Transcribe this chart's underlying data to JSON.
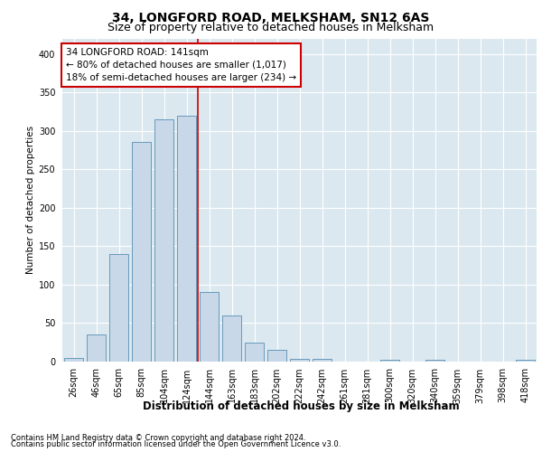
{
  "title1": "34, LONGFORD ROAD, MELKSHAM, SN12 6AS",
  "title2": "Size of property relative to detached houses in Melksham",
  "xlabel": "Distribution of detached houses by size in Melksham",
  "ylabel": "Number of detached properties",
  "footer1": "Contains HM Land Registry data © Crown copyright and database right 2024.",
  "footer2": "Contains public sector information licensed under the Open Government Licence v3.0.",
  "bin_labels": [
    "26sqm",
    "46sqm",
    "65sqm",
    "85sqm",
    "104sqm",
    "124sqm",
    "144sqm",
    "163sqm",
    "183sqm",
    "202sqm",
    "222sqm",
    "242sqm",
    "261sqm",
    "281sqm",
    "300sqm",
    "320sqm",
    "340sqm",
    "359sqm",
    "379sqm",
    "398sqm",
    "418sqm"
  ],
  "bar_heights": [
    5,
    35,
    140,
    285,
    315,
    320,
    90,
    60,
    25,
    15,
    4,
    3,
    0,
    0,
    2,
    0,
    2,
    0,
    0,
    0,
    2
  ],
  "bar_color": "#c8d8e8",
  "bar_edge_color": "#6699bb",
  "property_line_x": 5.5,
  "property_line_color": "#cc0000",
  "annotation_line1": "34 LONGFORD ROAD: 141sqm",
  "annotation_line2": "← 80% of detached houses are smaller (1,017)",
  "annotation_line3": "18% of semi-detached houses are larger (234) →",
  "annotation_box_color": "#cc0000",
  "ylim": [
    0,
    420
  ],
  "yticks": [
    0,
    50,
    100,
    150,
    200,
    250,
    300,
    350,
    400
  ],
  "background_color": "#dce8f0",
  "grid_color": "#ffffff",
  "title1_fontsize": 10,
  "title2_fontsize": 9,
  "xlabel_fontsize": 8.5,
  "ylabel_fontsize": 7.5,
  "tick_fontsize": 7,
  "annotation_fontsize": 7.5,
  "footer_fontsize": 6
}
